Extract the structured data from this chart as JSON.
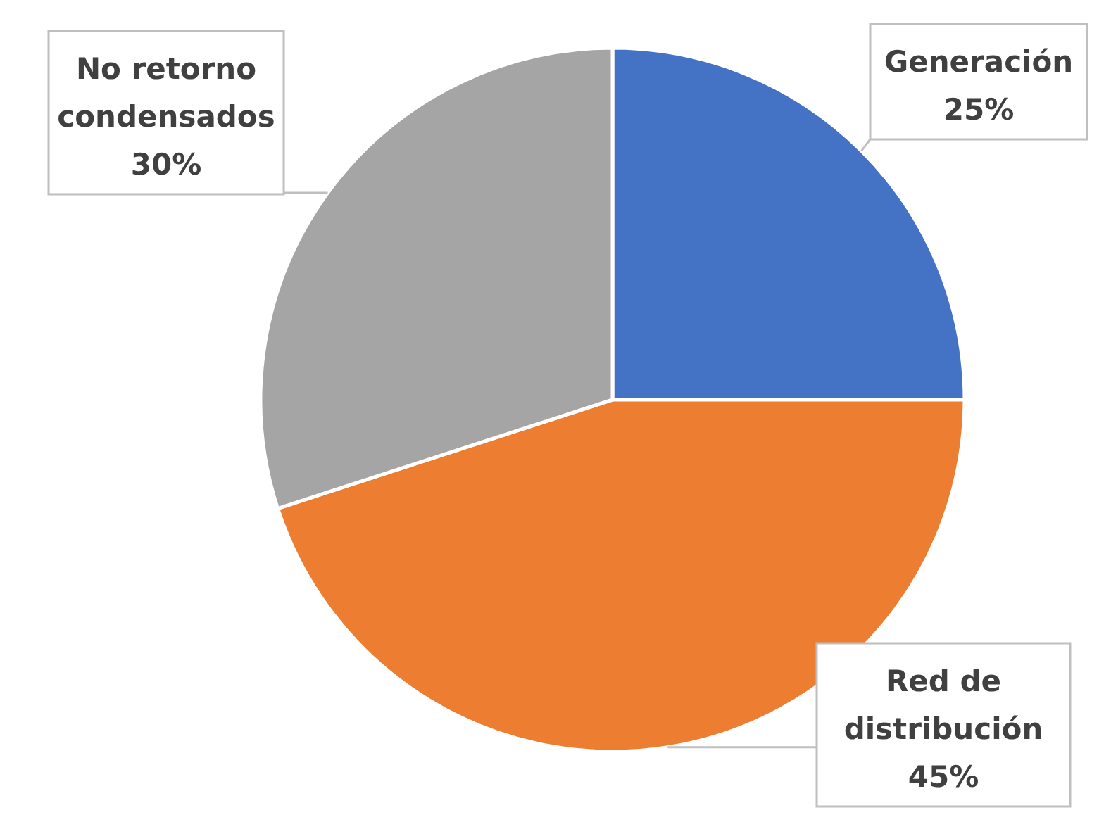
{
  "chart_data": {
    "type": "pie",
    "categories": [
      "Generación",
      "Red de distribución",
      "No retorno condensados"
    ],
    "values": [
      25,
      45,
      30
    ],
    "colors": [
      "#4472c4",
      "#ed7d31",
      "#a5a5a5"
    ],
    "value_labels": [
      "25%",
      "45%",
      "30%"
    ]
  }
}
